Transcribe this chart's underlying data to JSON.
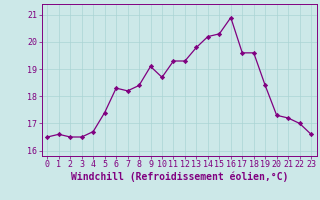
{
  "x": [
    0,
    1,
    2,
    3,
    4,
    5,
    6,
    7,
    8,
    9,
    10,
    11,
    12,
    13,
    14,
    15,
    16,
    17,
    18,
    19,
    20,
    21,
    22,
    23
  ],
  "y": [
    16.5,
    16.6,
    16.5,
    16.5,
    16.7,
    17.4,
    18.3,
    18.2,
    18.4,
    19.1,
    18.7,
    19.3,
    19.3,
    19.8,
    20.2,
    20.3,
    20.9,
    19.6,
    19.6,
    18.4,
    17.3,
    17.2,
    17.0,
    16.6
  ],
  "line_color": "#800080",
  "marker": "D",
  "marker_size": 2.2,
  "bg_color": "#cce8e8",
  "grid_color": "#aad4d4",
  "xlabel": "Windchill (Refroidissement éolien,°C)",
  "xlabel_fontsize": 7,
  "ylim": [
    15.8,
    21.4
  ],
  "yticks": [
    16,
    17,
    18,
    19,
    20,
    21
  ],
  "xticks": [
    0,
    1,
    2,
    3,
    4,
    5,
    6,
    7,
    8,
    9,
    10,
    11,
    12,
    13,
    14,
    15,
    16,
    17,
    18,
    19,
    20,
    21,
    22,
    23
  ],
  "tick_fontsize": 6,
  "line_width": 0.9
}
